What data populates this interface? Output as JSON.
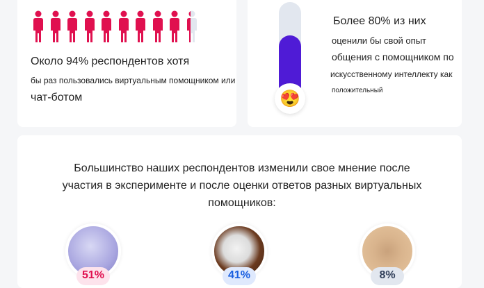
{
  "card_users": {
    "percent": 94,
    "icon": "person-icon",
    "icon_color": "#e0104f",
    "empty_color": "#e2e7ef",
    "icon_count": 10,
    "line1": "Около 94% респондентов хотя",
    "line2": "бы раз пользовались виртуальным помощником или",
    "line3": "чат-ботом"
  },
  "card_rating": {
    "percent": 80,
    "bar_color": "#4f1bd6",
    "emoji": "😍",
    "emoji_name": "heart-eyes-emoji-icon",
    "line1": "Более 80% из них",
    "line2": "оценили бы свой опыт",
    "line3": "общения с помощником по",
    "line4": "искусственному интеллекту как",
    "line5": "положительный"
  },
  "opinion": {
    "line1": "Большинство наших респондентов изменили свое мнение после",
    "line2": "участия в эксперименте и после оценки ответов разных виртуальных",
    "line3": "помощников:",
    "assistants": [
      {
        "percent": "51%",
        "color": "#e0104f",
        "badge_bg": "#fde3ec"
      },
      {
        "percent": "41%",
        "color": "#1a5fe0",
        "badge_bg": "#dfe9fd"
      },
      {
        "percent": "8%",
        "color": "#33415c",
        "badge_bg": "#e2e7ef"
      }
    ]
  }
}
